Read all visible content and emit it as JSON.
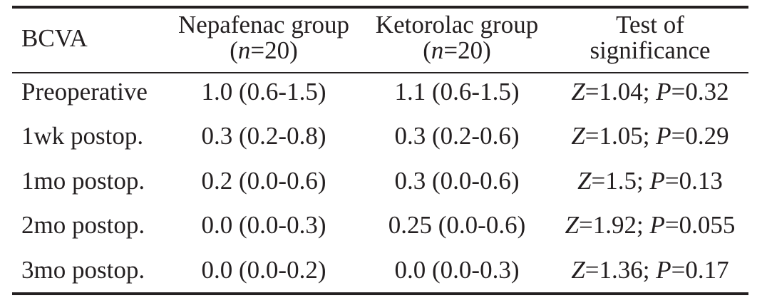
{
  "header": {
    "col0": "BCVA",
    "col1_line1": "Nepafenac group",
    "col1_line2_pre": "(",
    "col1_line2_n": "n",
    "col1_line2_post": "=20)",
    "col2_line1": "Ketorolac group",
    "col2_line2_pre": "(",
    "col2_line2_n": "n",
    "col2_line2_post": "=20)",
    "col3_line1": "Test of",
    "col3_line2": "significance"
  },
  "rows": [
    {
      "label": "Preoperative",
      "nepafenac": "1.0 (0.6-1.5)",
      "ketorolac": "1.1 (0.6-1.5)",
      "z_sym": "Z",
      "z_val": "=1.04; ",
      "p_sym": "P",
      "p_val": "=0.32"
    },
    {
      "label": "1wk postop.",
      "nepafenac": "0.3 (0.2-0.8)",
      "ketorolac": "0.3 (0.2-0.6)",
      "z_sym": "Z",
      "z_val": "=1.05; ",
      "p_sym": "P",
      "p_val": "=0.29"
    },
    {
      "label": "1mo postop.",
      "nepafenac": "0.2 (0.0-0.6)",
      "ketorolac": "0.3 (0.0-0.6)",
      "z_sym": "Z",
      "z_val": "=1.5; ",
      "p_sym": "P",
      "p_val": "=0.13"
    },
    {
      "label": "2mo postop.",
      "nepafenac": "0.0 (0.0-0.3)",
      "ketorolac": "0.25 (0.0-0.6)",
      "z_sym": "Z",
      "z_val": "=1.92; ",
      "p_sym": "P",
      "p_val": "=0.055"
    },
    {
      "label": "3mo postop.",
      "nepafenac": "0.0 (0.0-0.2)",
      "ketorolac": "0.0 (0.0-0.3)",
      "z_sym": "Z",
      "z_val": "=1.36; ",
      "p_sym": "P",
      "p_val": "=0.17"
    }
  ]
}
